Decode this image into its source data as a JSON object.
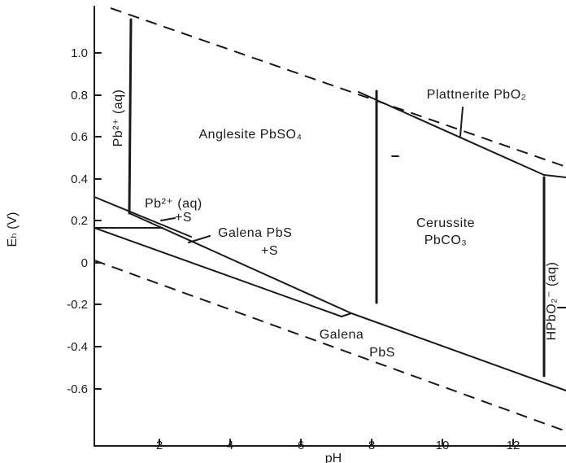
{
  "diagram": {
    "axes": {
      "x_title": "pH",
      "y_title": "Eₕ (V)",
      "x_ticks": [
        "2",
        "4",
        "6",
        "8",
        "10",
        "12"
      ],
      "y_ticks": [
        "1.0",
        "0.8",
        "0.6",
        "0.4",
        "0.2",
        "0",
        "-0.2",
        "-0.4",
        "-0.6"
      ]
    },
    "regions": {
      "pb2_aq_top": "Pb²⁺ (aq)",
      "anglesite": "Anglesite PbSO₄",
      "plattnerite": "Plattnerite PbO₂",
      "pb2_aq_s_line1": "Pb²⁺   (aq)",
      "pb2_aq_s_line2": "+S",
      "galena_s_line1": "Galena PbS",
      "galena_s_line2": "+S",
      "cerussite_line1": "Cerussite",
      "cerussite_line2": "PbCO₃",
      "galena_line1": "Galena",
      "galena_line2": "PbS",
      "hpbo2_aq": "HPbO₂⁻ (aq)"
    }
  }
}
